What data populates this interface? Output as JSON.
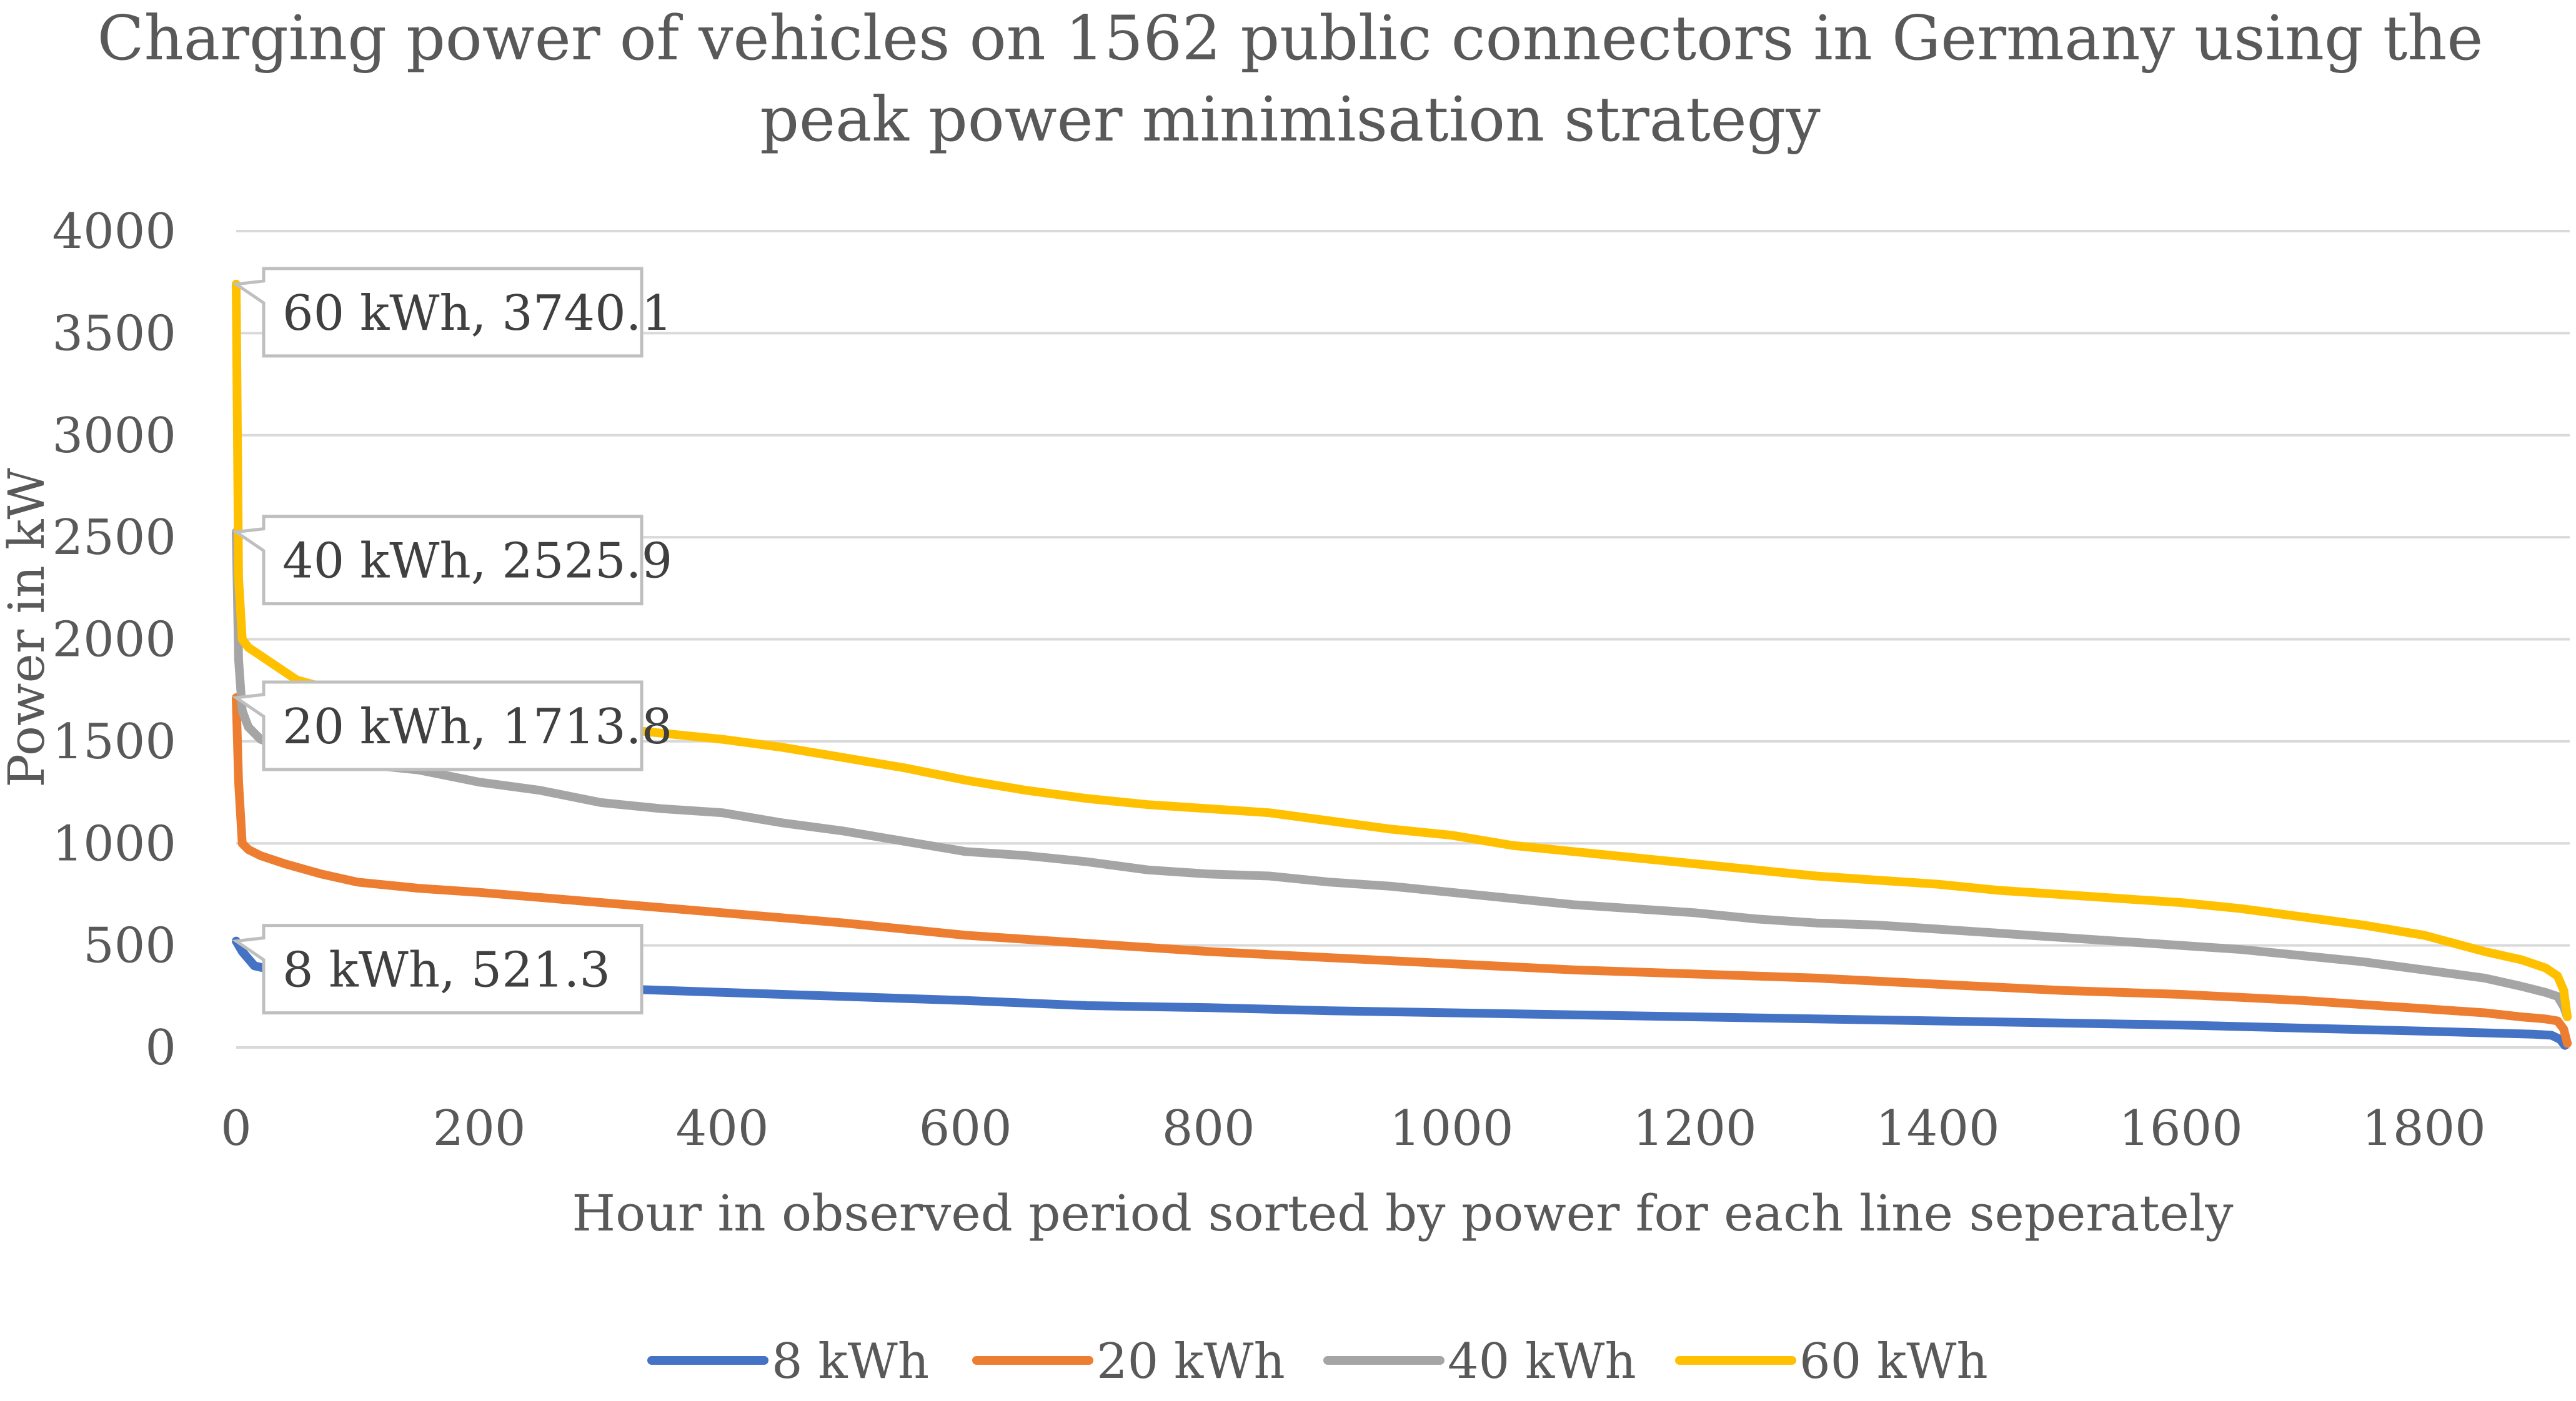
{
  "chart_data": {
    "type": "line",
    "title": [
      "Charging power of vehicles on 1562 public connectors in Germany using the",
      "peak power minimisation strategy"
    ],
    "xlabel": "Hour in observed period sorted by power for each line seperately",
    "ylabel": "Power in kW",
    "xlim": [
      0,
      1920
    ],
    "ylim": [
      0,
      4000
    ],
    "x_ticks": [
      0,
      200,
      400,
      600,
      800,
      1000,
      1200,
      1400,
      1600,
      1800
    ],
    "y_ticks": [
      0,
      500,
      1000,
      1500,
      2000,
      2500,
      3000,
      3500,
      4000
    ],
    "grid": true,
    "legend_position": "bottom",
    "series": [
      {
        "name": "8 kWh",
        "color": "#4472c4",
        "x": [
          0,
          5,
          15,
          30,
          60,
          100,
          200,
          300,
          400,
          500,
          600,
          700,
          800,
          900,
          1000,
          1100,
          1200,
          1300,
          1400,
          1500,
          1600,
          1700,
          1800,
          1860,
          1890,
          1905,
          1912,
          1916
        ],
        "y": [
          521.3,
          470,
          400,
          380,
          360,
          345,
          310,
          290,
          270,
          250,
          230,
          205,
          195,
          180,
          170,
          160,
          150,
          140,
          130,
          120,
          110,
          95,
          80,
          70,
          65,
          60,
          40,
          10
        ]
      },
      {
        "name": "20 kWh",
        "color": "#ed7d31",
        "x": [
          0,
          2,
          5,
          10,
          20,
          40,
          70,
          100,
          150,
          200,
          300,
          400,
          500,
          600,
          700,
          800,
          900,
          1000,
          1100,
          1200,
          1300,
          1400,
          1500,
          1600,
          1700,
          1800,
          1850,
          1880,
          1900,
          1910,
          1915,
          1918
        ],
        "y": [
          1713.8,
          1300,
          1000,
          970,
          940,
          900,
          850,
          810,
          780,
          760,
          710,
          660,
          610,
          550,
          510,
          470,
          440,
          410,
          380,
          360,
          340,
          310,
          280,
          260,
          230,
          190,
          170,
          150,
          140,
          130,
          90,
          20
        ]
      },
      {
        "name": "40 kWh",
        "color": "#a5a5a5",
        "x": [
          0,
          2,
          5,
          10,
          20,
          40,
          70,
          100,
          150,
          200,
          250,
          300,
          350,
          400,
          450,
          500,
          550,
          600,
          650,
          700,
          750,
          800,
          850,
          900,
          950,
          1000,
          1050,
          1100,
          1150,
          1200,
          1250,
          1300,
          1350,
          1400,
          1450,
          1500,
          1550,
          1600,
          1650,
          1700,
          1750,
          1800,
          1850,
          1880,
          1900,
          1910,
          1915,
          1918
        ],
        "y": [
          2525.9,
          1900,
          1650,
          1570,
          1510,
          1470,
          1410,
          1390,
          1360,
          1300,
          1260,
          1200,
          1170,
          1150,
          1100,
          1060,
          1010,
          960,
          940,
          910,
          870,
          850,
          840,
          810,
          790,
          760,
          730,
          700,
          680,
          660,
          630,
          610,
          600,
          580,
          560,
          540,
          520,
          500,
          480,
          450,
          420,
          380,
          340,
          300,
          270,
          250,
          200,
          150
        ]
      },
      {
        "name": "60 kWh",
        "color": "#ffc000",
        "x": [
          0,
          2,
          5,
          10,
          20,
          30,
          50,
          100,
          150,
          200,
          250,
          300,
          350,
          400,
          450,
          500,
          550,
          600,
          650,
          700,
          750,
          800,
          850,
          900,
          950,
          1000,
          1050,
          1100,
          1150,
          1200,
          1250,
          1300,
          1350,
          1400,
          1450,
          1500,
          1550,
          1600,
          1650,
          1700,
          1750,
          1800,
          1850,
          1880,
          1900,
          1910,
          1915,
          1918
        ],
        "y": [
          3740.1,
          2300,
          2000,
          1960,
          1920,
          1880,
          1800,
          1720,
          1680,
          1640,
          1600,
          1570,
          1540,
          1510,
          1470,
          1420,
          1370,
          1310,
          1260,
          1220,
          1190,
          1170,
          1150,
          1110,
          1070,
          1040,
          990,
          960,
          930,
          900,
          870,
          840,
          820,
          800,
          770,
          750,
          730,
          710,
          680,
          640,
          600,
          550,
          470,
          430,
          390,
          350,
          280,
          150
        ]
      }
    ],
    "annotations": [
      {
        "series": "60 kWh",
        "label": "60 kWh, 3740.1",
        "x": 0,
        "y": 3740.1
      },
      {
        "series": "40 kWh",
        "label": "40 kWh, 2525.9",
        "x": 0,
        "y": 2525.9
      },
      {
        "series": "20 kWh",
        "label": "20 kWh, 1713.8",
        "x": 0,
        "y": 1713.8
      },
      {
        "series": "8 kWh",
        "label": "8 kWh, 521.3",
        "x": 0,
        "y": 521.3
      }
    ]
  }
}
